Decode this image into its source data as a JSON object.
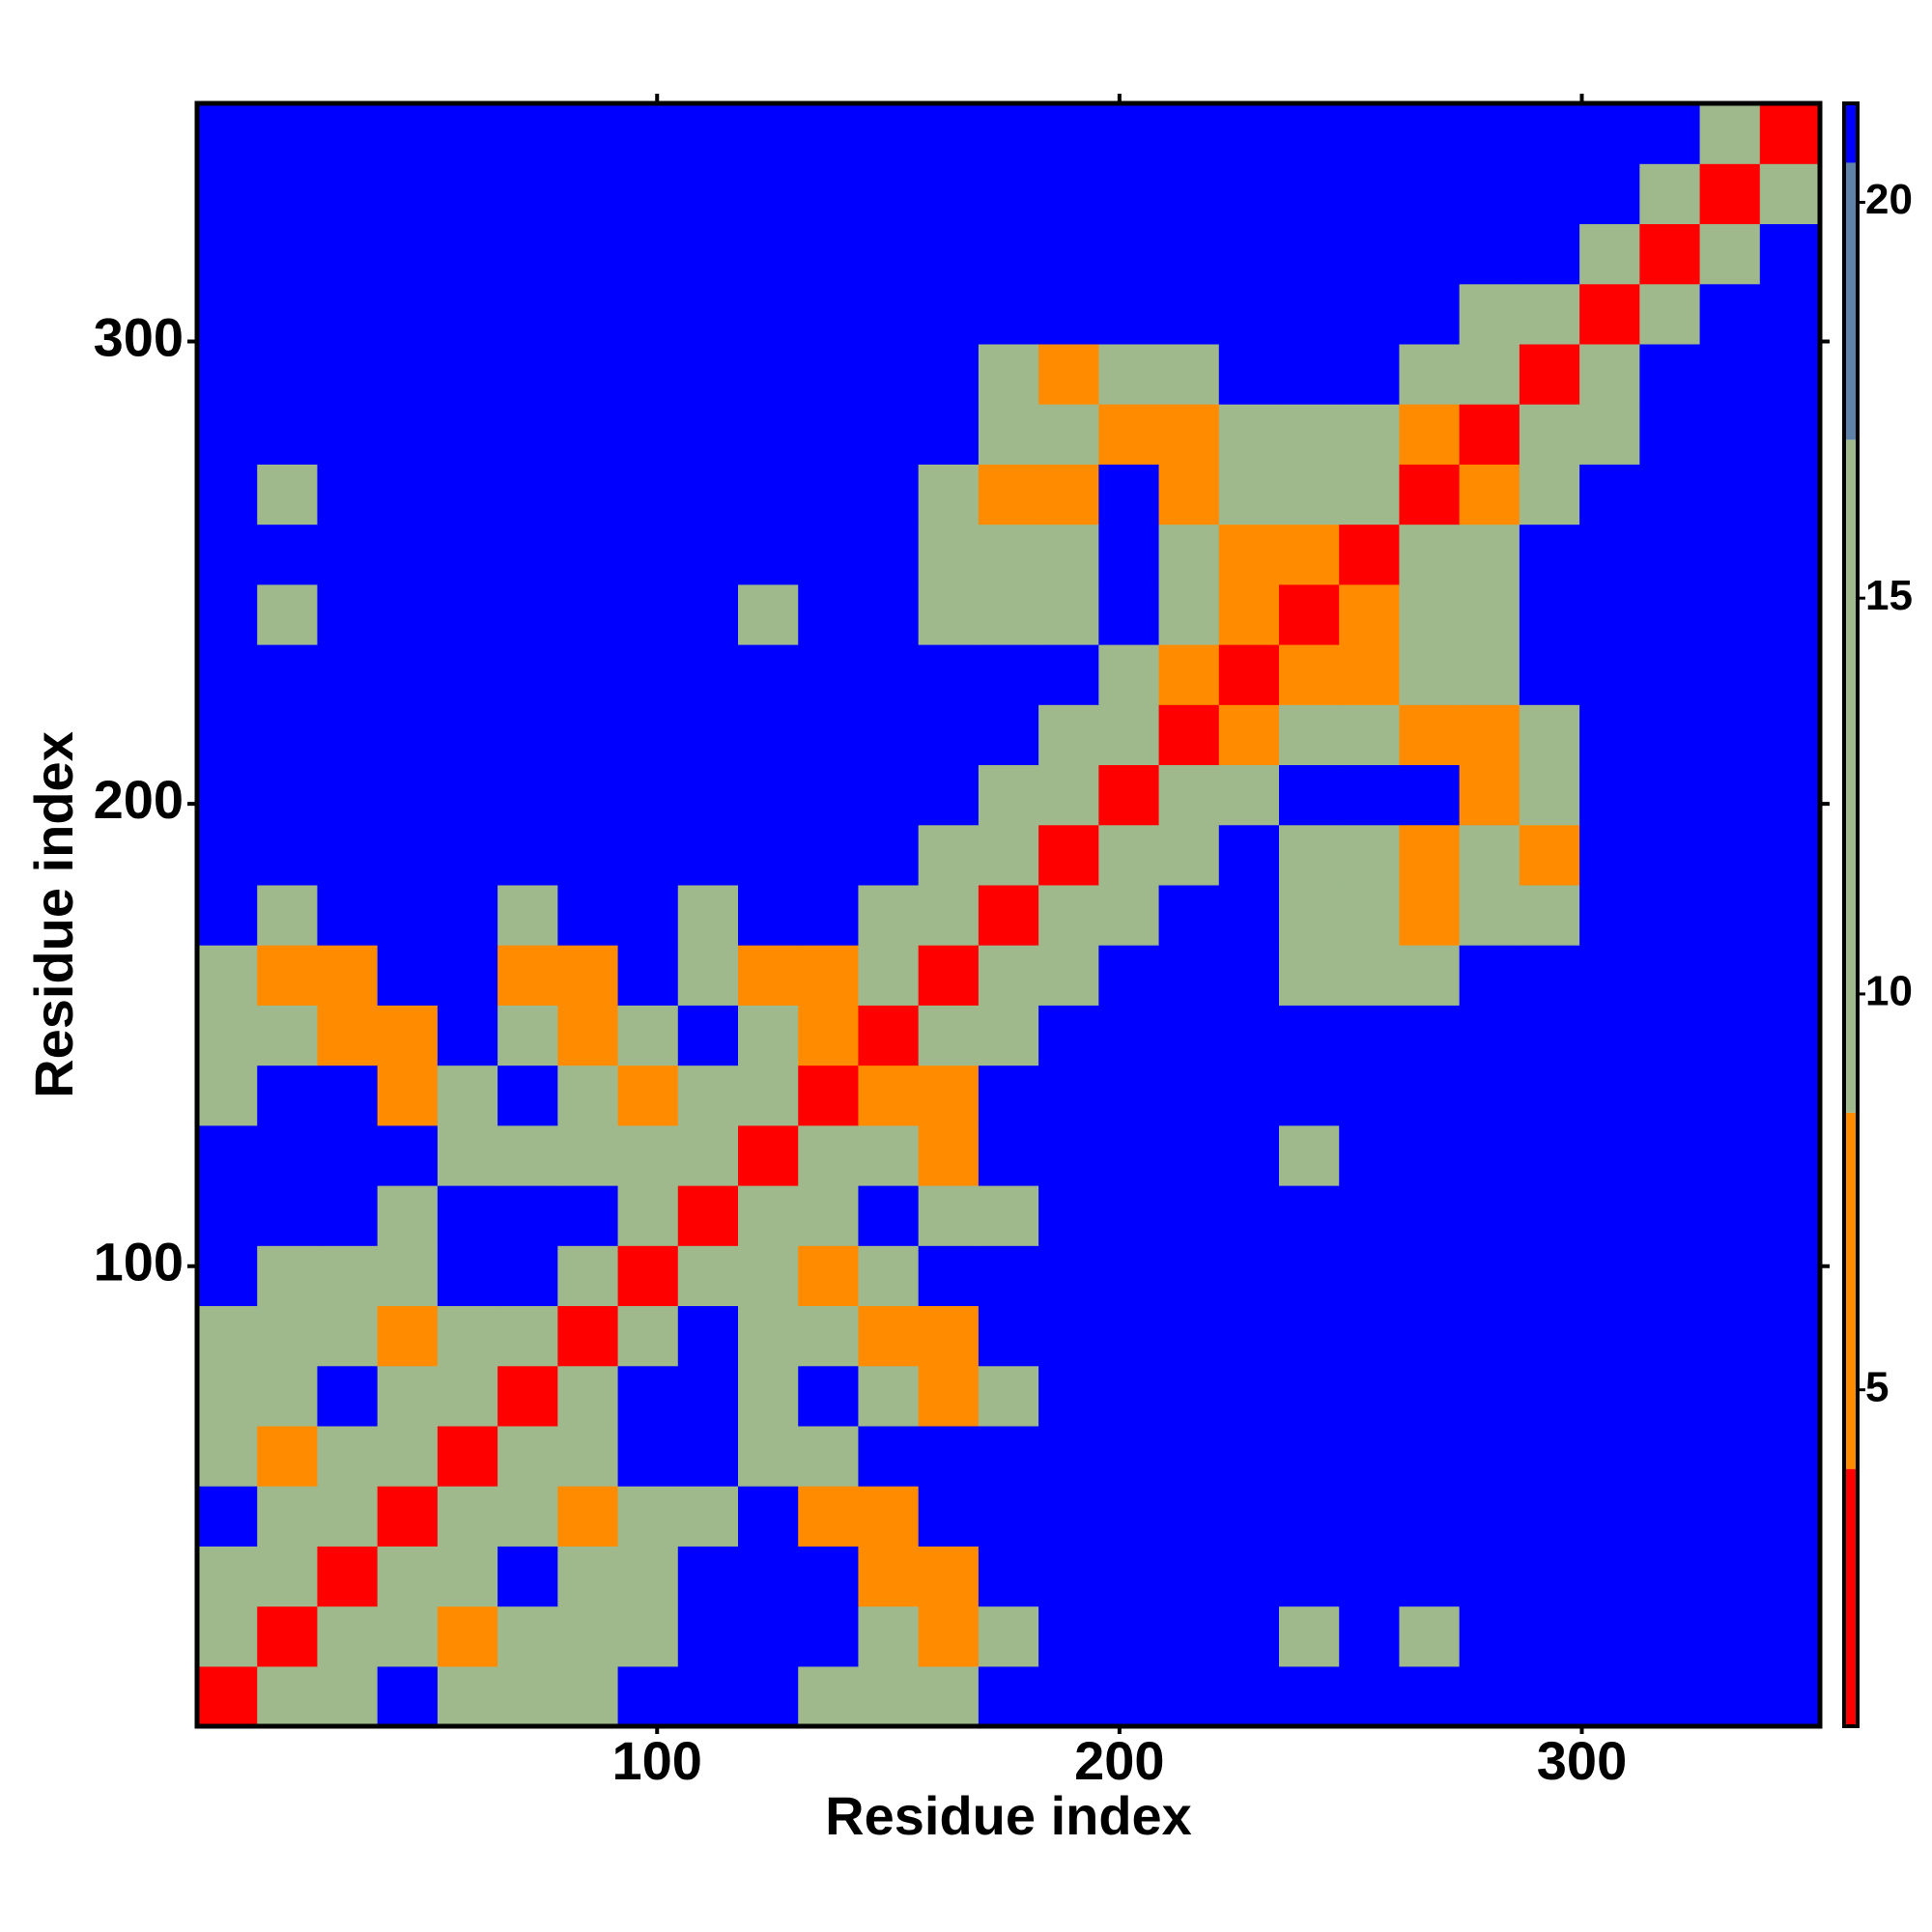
{
  "chart_data": {
    "type": "heatmap",
    "x_label": "Residue index",
    "y_label": "Residue index",
    "xlim": [
      0.5,
      351.5
    ],
    "ylim": [
      0.5,
      351.5
    ],
    "xticks": [
      100,
      200,
      300
    ],
    "yticks": [
      100,
      200,
      300
    ],
    "x": [
      7,
      20,
      33,
      46,
      59,
      72,
      85,
      98,
      111,
      124,
      137,
      150,
      163,
      176,
      189,
      202,
      215,
      228,
      241,
      254,
      267,
      280,
      293,
      306,
      319,
      332,
      345
    ],
    "y": [
      7,
      20,
      33,
      46,
      59,
      72,
      85,
      98,
      111,
      124,
      137,
      150,
      163,
      176,
      189,
      202,
      215,
      228,
      241,
      254,
      267,
      280,
      293,
      306,
      319,
      332,
      345
    ],
    "z": [
      [
        3,
        10,
        11,
        21,
        11,
        13,
        11,
        21,
        21,
        21,
        12,
        11,
        11,
        21,
        21,
        21,
        21,
        21,
        21,
        21,
        21,
        21,
        21,
        21,
        21,
        21,
        21
      ],
      [
        10,
        3,
        10,
        11,
        7,
        12,
        10,
        12,
        21,
        21,
        21,
        11,
        7,
        12,
        21,
        21,
        21,
        21,
        13,
        21,
        12,
        21,
        21,
        21,
        21,
        21,
        21
      ],
      [
        11,
        10,
        3,
        10,
        11,
        21,
        11,
        12,
        21,
        21,
        21,
        7,
        8,
        21,
        21,
        21,
        21,
        21,
        21,
        21,
        21,
        21,
        21,
        21,
        21,
        21,
        21
      ],
      [
        21,
        11,
        10,
        3,
        10,
        10,
        8,
        11,
        12,
        21,
        7,
        8,
        21,
        21,
        21,
        21,
        21,
        21,
        21,
        21,
        21,
        21,
        21,
        21,
        21,
        21,
        21
      ],
      [
        11,
        7,
        11,
        10,
        3,
        10,
        11,
        21,
        21,
        9,
        11,
        21,
        21,
        21,
        21,
        21,
        21,
        21,
        21,
        21,
        21,
        21,
        21,
        21,
        21,
        21,
        21
      ],
      [
        13,
        12,
        21,
        10,
        10,
        3,
        10,
        21,
        21,
        12,
        21,
        9,
        8,
        9,
        21,
        21,
        21,
        21,
        21,
        21,
        21,
        21,
        21,
        21,
        21,
        21,
        21
      ],
      [
        11,
        10,
        11,
        8,
        11,
        10,
        3,
        10,
        21,
        10,
        11,
        7,
        8,
        21,
        21,
        21,
        21,
        21,
        21,
        21,
        21,
        21,
        21,
        21,
        21,
        21,
        21
      ],
      [
        21,
        12,
        12,
        11,
        21,
        21,
        10,
        3,
        10,
        11,
        7,
        11,
        21,
        21,
        21,
        21,
        21,
        21,
        21,
        21,
        21,
        21,
        21,
        21,
        21,
        21,
        21
      ],
      [
        21,
        21,
        21,
        12,
        21,
        21,
        21,
        10,
        3,
        10,
        11,
        21,
        11,
        12,
        21,
        21,
        21,
        21,
        21,
        21,
        21,
        21,
        21,
        21,
        21,
        21,
        21
      ],
      [
        21,
        21,
        21,
        21,
        9,
        12,
        10,
        11,
        10,
        3,
        10,
        10,
        8,
        21,
        21,
        21,
        21,
        21,
        12,
        21,
        21,
        21,
        21,
        21,
        21,
        21,
        21
      ],
      [
        12,
        21,
        21,
        7,
        11,
        21,
        11,
        7,
        11,
        10,
        3,
        8,
        7,
        21,
        21,
        21,
        21,
        21,
        21,
        21,
        21,
        21,
        21,
        21,
        21,
        21,
        21
      ],
      [
        11,
        11,
        7,
        8,
        21,
        9,
        7,
        11,
        21,
        10,
        8,
        3,
        10,
        11,
        21,
        21,
        21,
        21,
        21,
        21,
        21,
        21,
        21,
        21,
        21,
        21,
        21
      ],
      [
        11,
        7,
        8,
        21,
        21,
        8,
        8,
        21,
        11,
        8,
        7,
        10,
        3,
        10,
        11,
        21,
        21,
        21,
        12,
        11,
        12,
        21,
        21,
        21,
        21,
        21,
        21
      ],
      [
        21,
        12,
        21,
        21,
        21,
        9,
        21,
        21,
        12,
        21,
        21,
        11,
        10,
        3,
        10,
        11,
        21,
        21,
        9,
        11,
        8,
        11,
        12,
        21,
        21,
        21,
        21
      ],
      [
        21,
        21,
        21,
        21,
        21,
        21,
        21,
        21,
        21,
        21,
        21,
        21,
        11,
        10,
        3,
        10,
        10,
        21,
        11,
        11,
        8,
        10,
        8,
        21,
        21,
        21,
        21
      ],
      [
        21,
        21,
        21,
        21,
        21,
        21,
        21,
        21,
        21,
        21,
        21,
        21,
        21,
        11,
        10,
        3,
        10,
        10,
        21,
        21,
        21,
        7,
        11,
        21,
        21,
        21,
        21
      ],
      [
        21,
        21,
        21,
        21,
        21,
        21,
        21,
        21,
        21,
        21,
        21,
        21,
        21,
        21,
        10,
        10,
        3,
        7,
        9,
        10,
        8,
        8,
        10,
        21,
        21,
        21,
        21
      ],
      [
        21,
        21,
        21,
        21,
        21,
        21,
        21,
        21,
        21,
        21,
        21,
        21,
        21,
        21,
        21,
        10,
        7,
        3,
        7,
        7,
        10,
        11,
        21,
        21,
        21,
        21,
        21
      ],
      [
        21,
        13,
        21,
        21,
        21,
        21,
        21,
        21,
        21,
        12,
        21,
        21,
        12,
        9,
        11,
        21,
        9,
        7,
        3,
        7,
        10,
        11,
        21,
        21,
        21,
        21,
        21
      ],
      [
        21,
        21,
        21,
        21,
        21,
        21,
        21,
        21,
        21,
        21,
        21,
        21,
        11,
        11,
        11,
        21,
        10,
        7,
        7,
        3,
        10,
        11,
        21,
        21,
        21,
        21,
        21
      ],
      [
        21,
        12,
        21,
        21,
        21,
        21,
        21,
        21,
        21,
        21,
        21,
        21,
        12,
        8,
        8,
        21,
        8,
        10,
        10,
        10,
        3,
        7,
        10,
        21,
        21,
        21,
        21
      ],
      [
        21,
        21,
        21,
        21,
        21,
        21,
        21,
        21,
        21,
        21,
        21,
        21,
        21,
        11,
        10,
        7,
        8,
        11,
        11,
        11,
        7,
        3,
        10,
        11,
        21,
        21,
        21
      ],
      [
        21,
        21,
        21,
        21,
        21,
        21,
        21,
        21,
        21,
        21,
        21,
        21,
        21,
        12,
        8,
        11,
        10,
        21,
        21,
        21,
        10,
        10,
        3,
        15,
        21,
        21,
        21
      ],
      [
        21,
        21,
        21,
        21,
        21,
        21,
        21,
        21,
        21,
        21,
        21,
        21,
        21,
        21,
        21,
        21,
        21,
        21,
        21,
        21,
        21,
        11,
        15,
        3,
        15,
        21,
        21
      ],
      [
        21,
        21,
        21,
        21,
        21,
        21,
        21,
        21,
        21,
        21,
        21,
        21,
        21,
        21,
        21,
        21,
        21,
        21,
        21,
        21,
        21,
        21,
        21,
        15,
        3,
        15,
        21
      ],
      [
        21,
        21,
        21,
        21,
        21,
        21,
        21,
        21,
        21,
        21,
        21,
        21,
        21,
        21,
        21,
        21,
        21,
        21,
        21,
        21,
        21,
        21,
        21,
        21,
        15,
        3,
        15
      ],
      [
        21,
        21,
        21,
        21,
        21,
        21,
        21,
        21,
        21,
        21,
        21,
        21,
        21,
        21,
        21,
        21,
        21,
        21,
        21,
        21,
        21,
        21,
        21,
        21,
        21,
        15,
        3
      ]
    ],
    "zlim": [
      0.75,
      21.25
    ],
    "zticks": [
      5,
      10,
      15,
      20
    ],
    "levels": [
      0.75,
      4,
      8.5,
      17,
      20.5,
      21.25
    ],
    "level_colors": [
      "#ff0000",
      "#ff8c00",
      "#9fb98c",
      "#5f82a8",
      "#0000ff"
    ]
  }
}
